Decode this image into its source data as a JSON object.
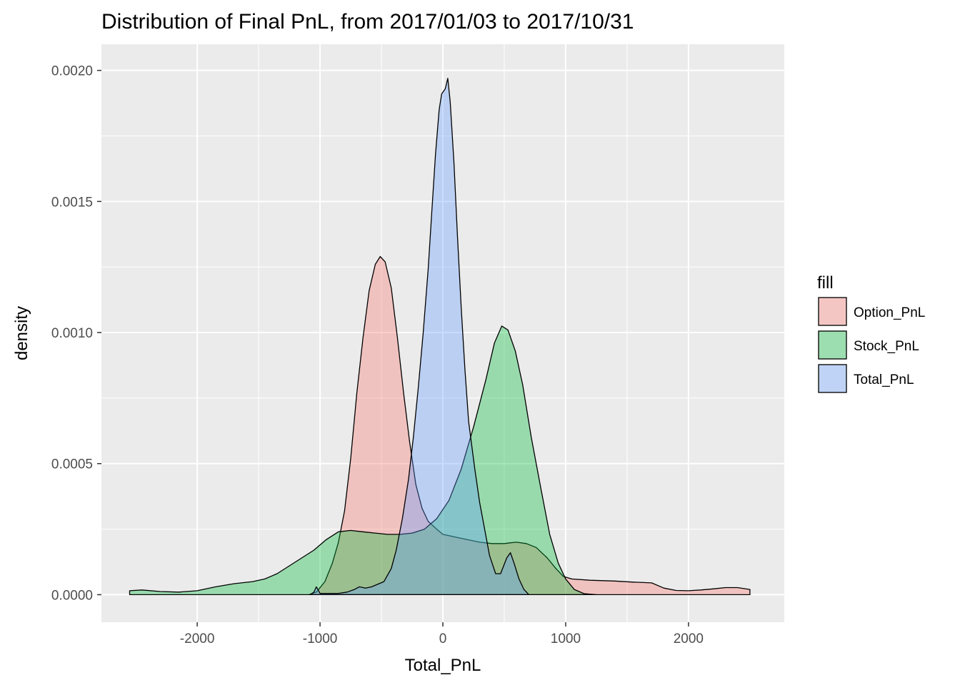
{
  "chart_data": {
    "type": "area",
    "title": "Distribution of Final PnL, from 2017/01/03 to 2017/10/31",
    "xlabel": "Total_PnL",
    "ylabel": "density",
    "xlim": [
      -2780,
      2780
    ],
    "ylim": [
      -0.000105,
      0.0020998
    ],
    "x_ticks": [
      -2000,
      -1000,
      0,
      1000,
      2000
    ],
    "x_tick_labels": [
      "-2000",
      "-1000",
      "0",
      "1000",
      "2000"
    ],
    "y_ticks": [
      0,
      0.0005,
      0.001,
      0.0015,
      0.002
    ],
    "y_tick_labels": [
      "0.0000",
      "0.0005",
      "0.0010",
      "0.0015",
      "0.0020"
    ],
    "grid": true,
    "panel_background": "#ebebeb",
    "legend": {
      "title": "fill",
      "position": "right",
      "entries": [
        "Option_PnL",
        "Stock_PnL",
        "Total_PnL"
      ]
    },
    "series": [
      {
        "name": "Option_PnL",
        "color": "#F8766D",
        "points": [
          [
            -1090,
            0
          ],
          [
            -1030,
            1e-05
          ],
          [
            -960,
            5e-05
          ],
          [
            -900,
            0.00012
          ],
          [
            -850,
            0.0002
          ],
          [
            -800,
            0.00032
          ],
          [
            -750,
            0.00052
          ],
          [
            -700,
            0.00077
          ],
          [
            -650,
            0.00098
          ],
          [
            -600,
            0.00116
          ],
          [
            -550,
            0.00126
          ],
          [
            -510,
            0.00129
          ],
          [
            -470,
            0.00127
          ],
          [
            -420,
            0.00117
          ],
          [
            -370,
            0.00098
          ],
          [
            -320,
            0.00077
          ],
          [
            -270,
            0.00058
          ],
          [
            -220,
            0.00042
          ],
          [
            -170,
            0.00033
          ],
          [
            -120,
            0.00028
          ],
          [
            -50,
            0.00025
          ],
          [
            0,
            0.00023
          ],
          [
            100,
            0.00022
          ],
          [
            200,
            0.00021
          ],
          [
            300,
            0.0002
          ],
          [
            400,
            0.000195
          ],
          [
            500,
            0.000195
          ],
          [
            550,
            0.000198
          ],
          [
            600,
            0.0002
          ],
          [
            680,
            0.000195
          ],
          [
            760,
            0.00018
          ],
          [
            850,
            0.00014
          ],
          [
            920,
            0.0001
          ],
          [
            980,
            7e-05
          ],
          [
            1050,
            6e-05
          ],
          [
            1200,
            5.5e-05
          ],
          [
            1400,
            5.2e-05
          ],
          [
            1550,
            4.8e-05
          ],
          [
            1700,
            4.5e-05
          ],
          [
            1800,
            2.5e-05
          ],
          [
            1900,
            1.6e-05
          ],
          [
            2000,
            1.5e-05
          ],
          [
            2100,
            1.8e-05
          ],
          [
            2200,
            2.2e-05
          ],
          [
            2300,
            2.7e-05
          ],
          [
            2400,
            2.7e-05
          ],
          [
            2500,
            2e-05
          ]
        ]
      },
      {
        "name": "Stock_PnL",
        "color": "#00BA38",
        "points": [
          [
            -2550,
            1.5e-05
          ],
          [
            -2450,
            1.8e-05
          ],
          [
            -2300,
            1.2e-05
          ],
          [
            -2150,
            1e-05
          ],
          [
            -2000,
            1.5e-05
          ],
          [
            -1850,
            3e-05
          ],
          [
            -1700,
            4.2e-05
          ],
          [
            -1550,
            5e-05
          ],
          [
            -1450,
            6e-05
          ],
          [
            -1350,
            8e-05
          ],
          [
            -1250,
            0.00011
          ],
          [
            -1150,
            0.00014
          ],
          [
            -1050,
            0.00017
          ],
          [
            -950,
            0.00021
          ],
          [
            -850,
            0.00024
          ],
          [
            -750,
            0.000245
          ],
          [
            -650,
            0.00024
          ],
          [
            -550,
            0.000235
          ],
          [
            -450,
            0.00023
          ],
          [
            -350,
            0.00023
          ],
          [
            -250,
            0.000235
          ],
          [
            -150,
            0.00025
          ],
          [
            -50,
            0.00029
          ],
          [
            50,
            0.00036
          ],
          [
            150,
            0.00048
          ],
          [
            250,
            0.00064
          ],
          [
            350,
            0.00082
          ],
          [
            420,
            0.00096
          ],
          [
            480,
            0.001025
          ],
          [
            530,
            0.00101
          ],
          [
            590,
            0.00093
          ],
          [
            650,
            0.0008
          ],
          [
            720,
            0.0006
          ],
          [
            800,
            0.0004
          ],
          [
            870,
            0.00023
          ],
          [
            940,
            0.00012
          ],
          [
            1000,
            6e-05
          ],
          [
            1070,
            2e-05
          ],
          [
            1150,
            4e-06
          ],
          [
            1250,
            0
          ]
        ]
      },
      {
        "name": "Total_PnL",
        "color": "#619CFF",
        "points": [
          [
            -1080,
            0
          ],
          [
            -1050,
            1e-05
          ],
          [
            -1030,
            3e-05
          ],
          [
            -1000,
            5e-06
          ],
          [
            -950,
            5e-06
          ],
          [
            -850,
            5e-06
          ],
          [
            -780,
            1e-05
          ],
          [
            -720,
            2e-05
          ],
          [
            -680,
            3e-05
          ],
          [
            -630,
            2.5e-05
          ],
          [
            -580,
            3e-05
          ],
          [
            -480,
            5e-05
          ],
          [
            -420,
            0.0001
          ],
          [
            -380,
            0.00017
          ],
          [
            -330,
            0.00029
          ],
          [
            -280,
            0.00044
          ],
          [
            -240,
            0.0006
          ],
          [
            -200,
            0.00079
          ],
          [
            -160,
            0.001
          ],
          [
            -120,
            0.00124
          ],
          [
            -90,
            0.00146
          ],
          [
            -60,
            0.00168
          ],
          [
            -30,
            0.00185
          ],
          [
            -10,
            0.00191
          ],
          [
            20,
            0.00193
          ],
          [
            40,
            0.00197
          ],
          [
            60,
            0.00188
          ],
          [
            90,
            0.00165
          ],
          [
            120,
            0.00136
          ],
          [
            150,
            0.00109
          ],
          [
            180,
            0.00086
          ],
          [
            210,
            0.00066
          ],
          [
            260,
            0.00048
          ],
          [
            300,
            0.00035
          ],
          [
            340,
            0.00025
          ],
          [
            380,
            0.00015
          ],
          [
            430,
            8e-05
          ],
          [
            470,
            8e-05
          ],
          [
            520,
            0.00014
          ],
          [
            550,
            0.00016
          ],
          [
            580,
            0.00012
          ],
          [
            620,
            6e-05
          ],
          [
            660,
            2e-05
          ],
          [
            700,
            0
          ]
        ]
      }
    ]
  }
}
